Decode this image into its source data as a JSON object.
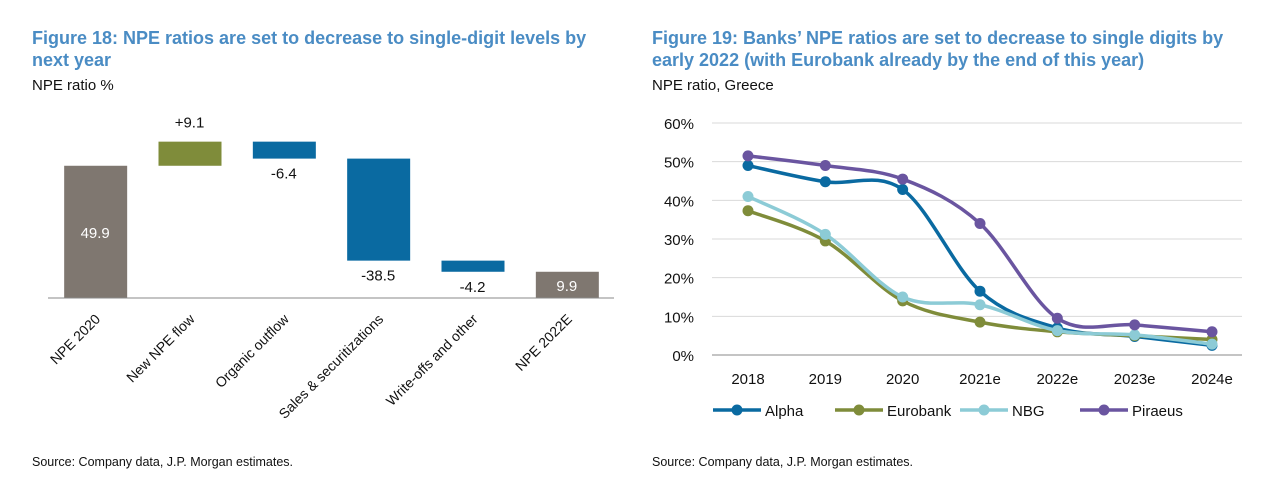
{
  "chart_data": [
    {
      "type": "waterfall",
      "title": "Figure 18: NPE ratios are set to decrease to single-digit levels by next year",
      "subtitle": "NPE ratio %",
      "categories": [
        "NPE 2020",
        "New NPE flow",
        "Organic outflow",
        "Sales & securitizations",
        "Write-offs and other",
        "NPE 2022E"
      ],
      "values": [
        49.9,
        9.1,
        -6.4,
        -38.5,
        -4.2,
        9.9
      ],
      "value_labels": [
        "49.9",
        "+9.1",
        "-6.4",
        "-38.5",
        "-4.2",
        "9.9"
      ],
      "colors": [
        "#7f7770",
        "#7f8c3a",
        "#0a6aa1",
        "#0a6aa1",
        "#0a6aa1",
        "#7f7770"
      ],
      "ylim": [
        0,
        60
      ],
      "source": "Source: Company data, J.P. Morgan estimates."
    },
    {
      "type": "line",
      "title": "Figure 19: Banks’ NPE ratios are set to decrease to single digits by early 2022 (with Eurobank already by the end of this year)",
      "subtitle": "NPE ratio, Greece",
      "categories": [
        "2018",
        "2019",
        "2020",
        "2021e",
        "2022e",
        "2023e",
        "2024e"
      ],
      "series": [
        {
          "name": "Alpha",
          "color": "#0a6aa1",
          "values": [
            49,
            44.8,
            42.8,
            16.5,
            7,
            4.8,
            2.5
          ]
        },
        {
          "name": "Eurobank",
          "color": "#7f8c3a",
          "values": [
            37.3,
            29.5,
            14,
            8.5,
            6,
            5,
            4
          ]
        },
        {
          "name": "NBG",
          "color": "#8ccbd6",
          "values": [
            41,
            31.2,
            15,
            13,
            6.3,
            5.2,
            2.8
          ]
        },
        {
          "name": "Piraeus",
          "color": "#6a55a0",
          "values": [
            51.5,
            49,
            45.5,
            34,
            9.5,
            7.8,
            6
          ]
        }
      ],
      "ylim": [
        0,
        60
      ],
      "yticks": [
        {
          "value": 0,
          "label": "0%"
        },
        {
          "value": 10,
          "label": "10%"
        },
        {
          "value": 20,
          "label": "20%"
        },
        {
          "value": 30,
          "label": "30%"
        },
        {
          "value": 40,
          "label": "40%"
        },
        {
          "value": 50,
          "label": "50%"
        },
        {
          "value": 60,
          "label": "60%"
        }
      ],
      "grid": true,
      "legend": "bottom",
      "source": "Source: Company data, J.P. Morgan estimates."
    }
  ]
}
